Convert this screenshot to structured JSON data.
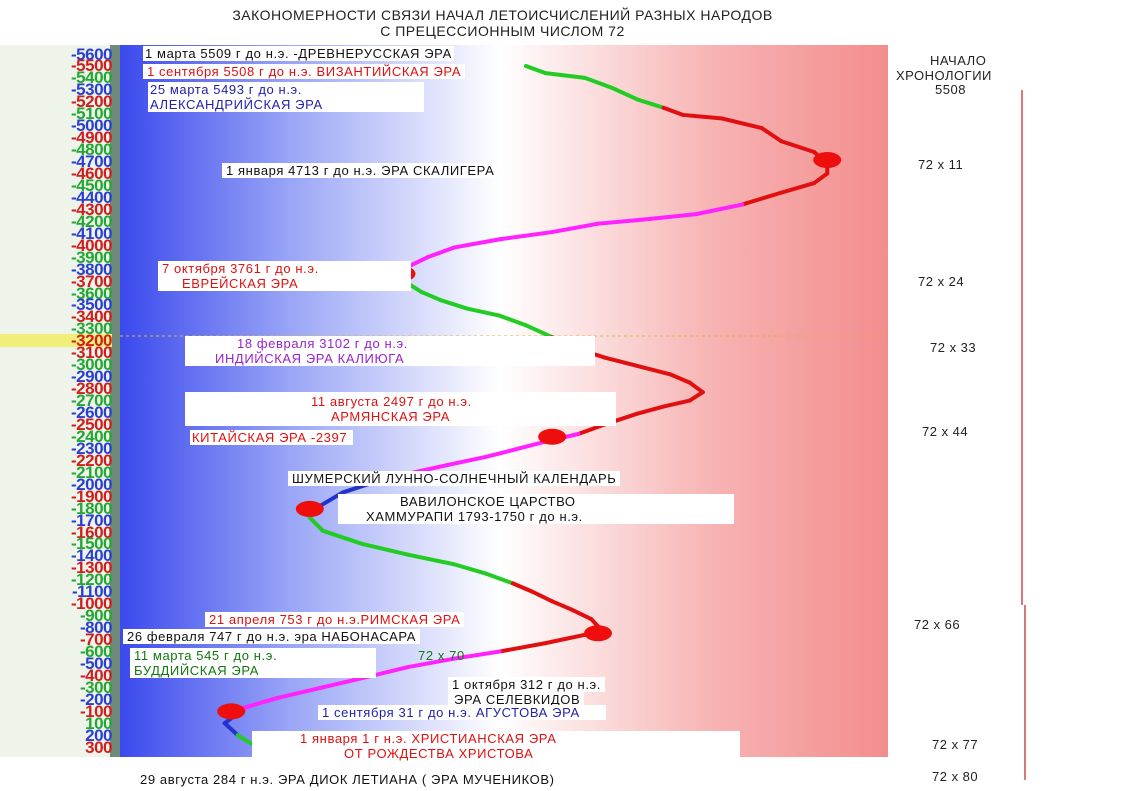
{
  "title": {
    "line1": "ЗАКОНОМЕРНОСТИ СВЯЗИ НАЧАЛ ЛЕТОИСЧИСЛЕНИЙ РАЗНЫХ НАРОДОВ",
    "line2": "С ПРЕЦЕССИОННЫМ ЧИСЛОМ 72"
  },
  "chart_data": {
    "type": "line",
    "title": "ЗАКОНОМЕРНОСТИ СВЯЗИ НАЧАЛ ЛЕТОИСЧИСЛЕНИЙ РАЗНЫХ НАРОДОВ С ПРЕЦЕССИОННЫМ ЧИСЛОМ 72",
    "orientation": "vertical year axis on the left",
    "ylim": [
      -5600,
      300
    ],
    "y_ticks": [
      -5600,
      -5500,
      -5400,
      -5300,
      -5200,
      -5100,
      -5000,
      -4900,
      -4800,
      -4700,
      -4600,
      -4500,
      -4400,
      -4300,
      -4200,
      -4100,
      -4000,
      -3900,
      -3800,
      -3700,
      -3600,
      -3500,
      -3400,
      -3300,
      -3200,
      -3100,
      -3000,
      -2900,
      -2800,
      -2700,
      -2600,
      -2500,
      -2400,
      -2300,
      -2200,
      -2100,
      -2000,
      -1900,
      -1800,
      -1700,
      -1600,
      -1500,
      -1400,
      -1300,
      -1200,
      -1100,
      -1000,
      -900,
      -800,
      -700,
      -600,
      -500,
      -400,
      -300,
      -200,
      -100,
      100,
      200,
      300
    ],
    "y_tick_labels": [
      "-5600",
      "-5500",
      "-5400",
      "-5300",
      "-5200",
      "-5100",
      "-5000",
      "-4900",
      "-4800",
      "-4700",
      "-4600",
      "-4500",
      "-4400",
      "-4300",
      "-4200",
      "-4100",
      "-4000",
      "-3900",
      "-3800",
      "-3700",
      "-3600",
      "-3500",
      "-3400",
      "-3300",
      "-3200",
      "-3100",
      "-3000",
      "-2900",
      "-2800",
      "-2700",
      "-2600",
      "-2500",
      "-2400",
      "-2300",
      "-2200",
      "-2100",
      "-2000",
      "-1900",
      "-1800",
      "-1700",
      "-1600",
      "-1500",
      "-1400",
      "-1300",
      "-1200",
      "-1100",
      "-1000",
      "-900",
      "-800",
      "-700",
      "-600",
      "-500",
      "-400",
      "-300",
      "-200",
      "-100",
      "100",
      "200",
      "300"
    ],
    "highlight_tick": -3200,
    "curve_points": [
      [
        0.49,
        -5500
      ],
      [
        0.52,
        -5440
      ],
      [
        0.58,
        -5400
      ],
      [
        0.62,
        -5320
      ],
      [
        0.66,
        -5220
      ],
      [
        0.7,
        -5150
      ],
      [
        0.73,
        -5090
      ],
      [
        0.79,
        -5060
      ],
      [
        0.85,
        -4980
      ],
      [
        0.88,
        -4870
      ],
      [
        0.93,
        -4780
      ],
      [
        0.95,
        -4680
      ],
      [
        0.95,
        -4600
      ],
      [
        0.93,
        -4520
      ],
      [
        0.88,
        -4440
      ],
      [
        0.82,
        -4340
      ],
      [
        0.75,
        -4260
      ],
      [
        0.68,
        -4220
      ],
      [
        0.6,
        -4180
      ],
      [
        0.53,
        -4110
      ],
      [
        0.45,
        -4050
      ],
      [
        0.38,
        -3980
      ],
      [
        0.34,
        -3900
      ],
      [
        0.31,
        -3820
      ],
      [
        0.3,
        -3760
      ],
      [
        0.31,
        -3680
      ],
      [
        0.33,
        -3610
      ],
      [
        0.36,
        -3540
      ],
      [
        0.4,
        -3470
      ],
      [
        0.45,
        -3410
      ],
      [
        0.49,
        -3330
      ],
      [
        0.53,
        -3230
      ],
      [
        0.57,
        -3130
      ],
      [
        0.61,
        -3060
      ],
      [
        0.66,
        -2990
      ],
      [
        0.71,
        -2920
      ],
      [
        0.74,
        -2850
      ],
      [
        0.76,
        -2770
      ],
      [
        0.74,
        -2700
      ],
      [
        0.7,
        -2650
      ],
      [
        0.66,
        -2590
      ],
      [
        0.61,
        -2500
      ],
      [
        0.57,
        -2420
      ],
      [
        0.53,
        -2370
      ],
      [
        0.48,
        -2300
      ],
      [
        0.43,
        -2230
      ],
      [
        0.37,
        -2160
      ],
      [
        0.32,
        -2100
      ],
      [
        0.26,
        -2020
      ],
      [
        0.21,
        -1930
      ],
      [
        0.17,
        -1800
      ],
      [
        0.16,
        -1720
      ],
      [
        0.18,
        -1610
      ],
      [
        0.24,
        -1500
      ],
      [
        0.31,
        -1410
      ],
      [
        0.38,
        -1330
      ],
      [
        0.43,
        -1250
      ],
      [
        0.47,
        -1170
      ],
      [
        0.5,
        -1100
      ],
      [
        0.53,
        -1020
      ],
      [
        0.56,
        -950
      ],
      [
        0.59,
        -870
      ],
      [
        0.6,
        -810
      ],
      [
        0.58,
        -740
      ],
      [
        0.52,
        -670
      ],
      [
        0.45,
        -600
      ],
      [
        0.38,
        -540
      ],
      [
        0.31,
        -470
      ],
      [
        0.25,
        -390
      ],
      [
        0.18,
        -300
      ],
      [
        0.11,
        -210
      ],
      [
        0.06,
        -130
      ],
      [
        0.04,
        -40
      ],
      [
        0.03,
        100
      ],
      [
        0.05,
        200
      ],
      [
        0.07,
        270
      ]
    ],
    "points": [
      {
        "year": -4713,
        "x": 0.95
      },
      {
        "year": -3761,
        "x": 0.3
      },
      {
        "year": -3102,
        "x": 0.55
      },
      {
        "year": -2397,
        "x": 0.53
      },
      {
        "year": -1793,
        "x": 0.16
      },
      {
        "year": -753,
        "x": 0.6
      },
      {
        "year": 1,
        "x": 0.04
      }
    ],
    "series_colors": {
      "red": "#e01010",
      "green": "#22cc22",
      "magenta": "#ff22ff",
      "blue": "#2233cc"
    },
    "annotations": [
      {
        "text": "1 марта 5509 г до н.э. -ДРЕВНЕРУССКАЯ ЭРА",
        "year": -5509,
        "color": "#111111"
      },
      {
        "text": "1 сентября 5508 г до н.э. ВИЗАНТИЙСКАЯ ЭРА",
        "year": -5508,
        "color": "#e01010"
      },
      {
        "text": "25 марта 5493 г до н.э.",
        "year": -5493,
        "color": "#2222aa"
      },
      {
        "text": "АЛЕКСАНДРИЙСКАЯ ЭРА",
        "year": -5493,
        "color": "#2222aa"
      },
      {
        "text": "1 января 4713 г до н.э. ЭРА СКАЛИГЕРА",
        "year": -4713,
        "color": "#111111"
      },
      {
        "text": "7 октября 3761 г до н.э.",
        "year": -3761,
        "color": "#e01010"
      },
      {
        "text": "ЕВРЕЙСКАЯ ЭРА",
        "year": -3761,
        "color": "#e01010"
      },
      {
        "text": "18 февраля 3102 г до н.э.",
        "year": -3102,
        "color": "#9922cc"
      },
      {
        "text": "ИНДИЙСКАЯ ЭРА КАЛИЮГА",
        "year": -3102,
        "color": "#9922cc"
      },
      {
        "text": "11 августа 2497 г до н.э.",
        "year": -2497,
        "color": "#e01010"
      },
      {
        "text": "АРМЯНСКАЯ ЭРА",
        "year": -2497,
        "color": "#e01010"
      },
      {
        "text": "КИТАЙСКАЯ ЭРА -2397",
        "year": -2397,
        "color": "#e01010"
      },
      {
        "text": "ШУМЕРСКИЙ ЛУННО-СОЛНЕЧНЫЙ КАЛЕНДАРЬ",
        "year": -2000,
        "color": "#111111"
      },
      {
        "text": "ВАВИЛОНСКОЕ ЦАРСТВО",
        "year": -1793,
        "color": "#111111"
      },
      {
        "text": "ХАММУРАПИ 1793-1750 г до н.э.",
        "year": -1793,
        "color": "#111111"
      },
      {
        "text": "21 апреля 753 г до н.э.РИМСКАЯ ЭРА",
        "year": -753,
        "color": "#e01010"
      },
      {
        "text": "26 февраля 747 г до н.э. эра НАБОНАСАРА",
        "year": -747,
        "color": "#111111"
      },
      {
        "text": "11 марта 545 г до н.э.",
        "year": -545,
        "color": "#117711"
      },
      {
        "text": "БУДДИЙСКАЯ ЭРА",
        "year": -545,
        "color": "#117711"
      },
      {
        "text": "72 х 70",
        "year": -545,
        "color": "#117711"
      },
      {
        "text": "1 октября 312 г до н.э.",
        "year": -312,
        "color": "#111111"
      },
      {
        "text": "ЭРА СЕЛЕВКИДОВ",
        "year": -312,
        "color": "#111111"
      },
      {
        "text": "1 сентября 31 г до н.э. АГУСТОВА ЭРА",
        "year": -31,
        "color": "#2222aa"
      },
      {
        "text": "1 января 1 г н.э. ХРИСТИАНСКАЯ ЭРА",
        "year": 1,
        "color": "#e01010"
      },
      {
        "text": "ОТ РОЖДЕСТВА ХРИСТОВА",
        "year": 1,
        "color": "#e01010"
      },
      {
        "text": "29 августа 284 г н.э. ЭРА ДИОК ЛЕТИАНА ( ЭРА МУЧЕНИКОВ)",
        "year": 284,
        "color": "#111111"
      }
    ],
    "right_column": {
      "heading": [
        "НАЧАЛО",
        "ХРОНОЛОГИИ",
        "5508"
      ],
      "multiples": [
        "72 х 11",
        "72 х 24",
        "72 х 33",
        "72 х 44",
        "72 х 66",
        "72 х 77",
        "72 х 80"
      ]
    }
  }
}
